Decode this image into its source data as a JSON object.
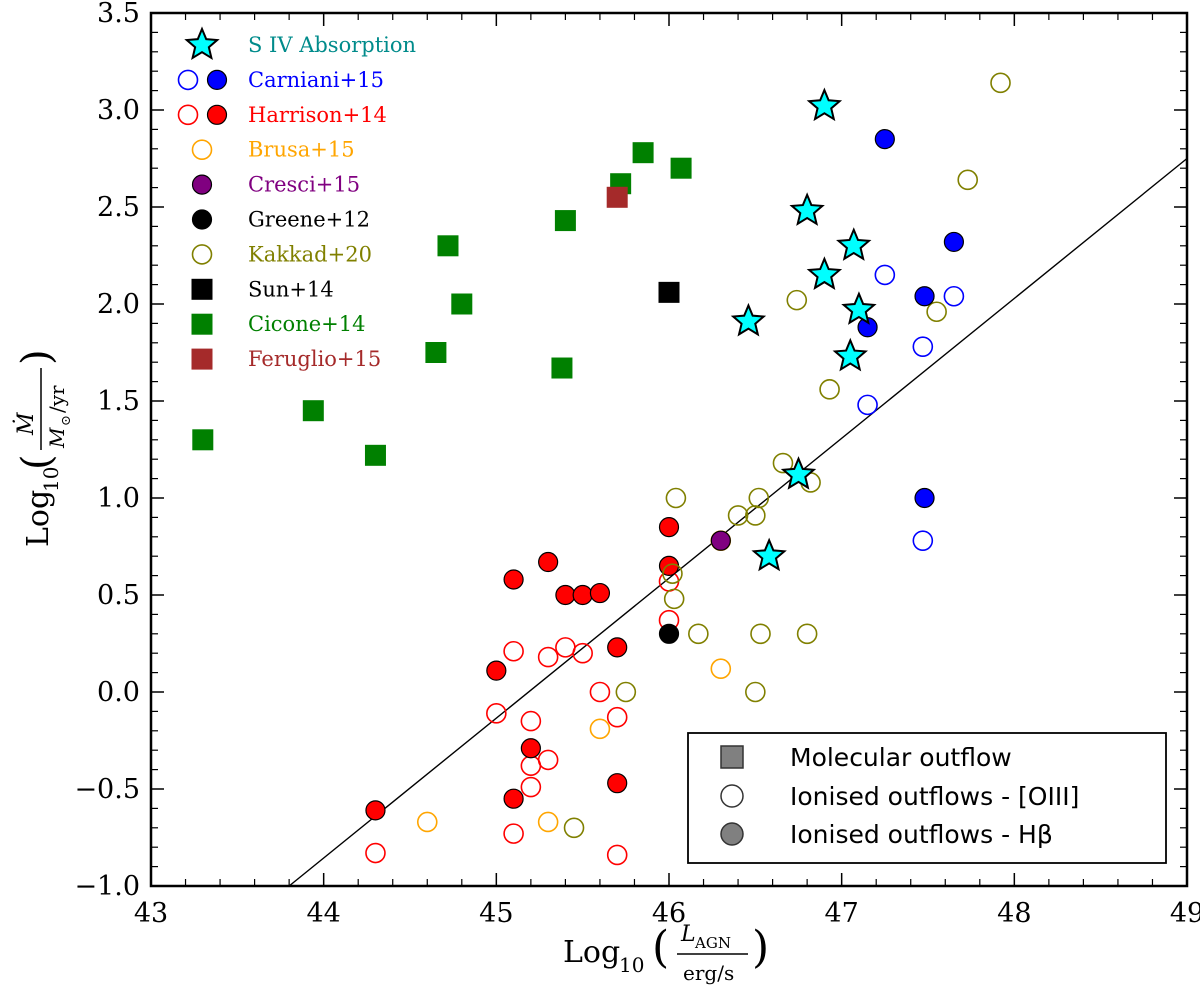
{
  "chart_data": {
    "type": "scatter",
    "xlim": [
      43,
      49
    ],
    "ylim": [
      -1.0,
      3.5
    ],
    "xticks": [
      "43",
      "44",
      "45",
      "46",
      "47",
      "48",
      "49"
    ],
    "yticks": [
      "−1.0",
      "−0.5",
      "0.0",
      "0.5",
      "1.0",
      "1.5",
      "2.0",
      "2.5",
      "3.0",
      "3.5"
    ],
    "xlabel": {
      "main": "Log",
      "sub": "10",
      "num": "L",
      "num_sub": "AGN",
      "den": "erg/s"
    },
    "ylabel": {
      "main": "Log",
      "sub": "10",
      "num": "Ṁ",
      "den": "M",
      "den_sub": "⊙",
      "den_tail": "/yr"
    },
    "fit_line": {
      "x": [
        43.8,
        49.0
      ],
      "y": [
        -1.0,
        2.75
      ]
    },
    "colors": {
      "siv": "#00ffff",
      "carniani": "#0000ff",
      "harrison": "#ff0000",
      "brusa": "#ffa500",
      "cresci": "#800080",
      "greene": "#000000",
      "kakkad": "#808000",
      "sun": "#000000",
      "cicone": "#008000",
      "feruglio": "#a52a2a"
    },
    "legend_datasets": [
      {
        "key": "siv",
        "label": "S IV Absorption",
        "text_color": "#008b8b"
      },
      {
        "key": "carniani",
        "label": "Carniani+15",
        "text_color": "#0000ff"
      },
      {
        "key": "harrison",
        "label": "Harrison+14",
        "text_color": "#ff0000"
      },
      {
        "key": "brusa",
        "label": "Brusa+15",
        "text_color": "#ffa500"
      },
      {
        "key": "cresci",
        "label": "Cresci+15",
        "text_color": "#800080"
      },
      {
        "key": "greene",
        "label": "Greene+12",
        "text_color": "#000000"
      },
      {
        "key": "kakkad",
        "label": "Kakkad+20",
        "text_color": "#808000"
      },
      {
        "key": "sun",
        "label": "Sun+14",
        "text_color": "#000000"
      },
      {
        "key": "cicone",
        "label": "Cicone+14",
        "text_color": "#008000"
      },
      {
        "key": "feruglio",
        "label": "Feruglio+15",
        "text_color": "#a52a2a"
      }
    ],
    "legend_types": [
      {
        "symbol": "square",
        "label": "Molecular outflow"
      },
      {
        "symbol": "circle-open",
        "label": "Ionised outflows - [OIII]"
      },
      {
        "symbol": "circle-filled",
        "label": "Ionised outflows - Hβ"
      }
    ],
    "series": [
      {
        "name": "Cicone+14",
        "key": "cicone",
        "marker": "square",
        "filled": true,
        "points": [
          [
            43.3,
            1.3
          ],
          [
            43.94,
            1.45
          ],
          [
            44.3,
            1.22
          ],
          [
            44.65,
            1.75
          ],
          [
            44.72,
            2.3
          ],
          [
            44.8,
            2.0
          ],
          [
            45.38,
            1.67
          ],
          [
            45.4,
            2.43
          ],
          [
            45.72,
            2.62
          ],
          [
            45.85,
            2.78
          ],
          [
            46.07,
            2.7
          ]
        ]
      },
      {
        "name": "Feruglio+15",
        "key": "feruglio",
        "marker": "square",
        "filled": true,
        "points": [
          [
            45.7,
            2.55
          ]
        ]
      },
      {
        "name": "Sun+14",
        "key": "sun",
        "marker": "square",
        "filled": true,
        "points": [
          [
            46.0,
            2.06
          ]
        ]
      },
      {
        "name": "Harrison+14 [OIII]",
        "key": "harrison",
        "marker": "circle",
        "filled": false,
        "points": [
          [
            44.3,
            -0.83
          ],
          [
            45.0,
            -0.11
          ],
          [
            45.1,
            0.21
          ],
          [
            45.1,
            -0.73
          ],
          [
            45.2,
            -0.15
          ],
          [
            45.2,
            -0.38
          ],
          [
            45.2,
            -0.49
          ],
          [
            45.3,
            0.18
          ],
          [
            45.3,
            -0.35
          ],
          [
            45.4,
            0.23
          ],
          [
            45.5,
            0.2
          ],
          [
            45.6,
            0.0
          ],
          [
            45.7,
            -0.13
          ],
          [
            45.7,
            -0.84
          ],
          [
            46.0,
            0.37
          ],
          [
            46.0,
            0.57
          ]
        ]
      },
      {
        "name": "Harrison+14 Hβ",
        "key": "harrison",
        "marker": "circle",
        "filled": true,
        "points": [
          [
            44.3,
            -0.61
          ],
          [
            45.0,
            0.11
          ],
          [
            45.1,
            0.58
          ],
          [
            45.1,
            -0.55
          ],
          [
            45.2,
            -0.29
          ],
          [
            45.3,
            0.67
          ],
          [
            45.4,
            0.5
          ],
          [
            45.5,
            0.5
          ],
          [
            45.6,
            0.51
          ],
          [
            45.7,
            0.23
          ],
          [
            45.7,
            -0.47
          ],
          [
            46.0,
            0.85
          ],
          [
            46.0,
            0.65
          ]
        ]
      },
      {
        "name": "Brusa+15",
        "key": "brusa",
        "marker": "circle",
        "filled": false,
        "points": [
          [
            44.6,
            -0.67
          ],
          [
            45.3,
            -0.67
          ],
          [
            45.6,
            -0.19
          ],
          [
            46.3,
            0.12
          ],
          [
            46.3,
            0.78
          ]
        ]
      },
      {
        "name": "Cresci+15",
        "key": "cresci",
        "marker": "circle",
        "filled": true,
        "points": [
          [
            46.3,
            0.78
          ]
        ]
      },
      {
        "name": "Greene+12",
        "key": "greene",
        "marker": "circle",
        "filled": true,
        "points": [
          [
            46.0,
            0.3
          ]
        ]
      },
      {
        "name": "Kakkad+20",
        "key": "kakkad",
        "marker": "circle",
        "filled": false,
        "points": [
          [
            45.45,
            -0.7
          ],
          [
            45.75,
            0.0
          ],
          [
            46.02,
            0.61
          ],
          [
            46.03,
            0.48
          ],
          [
            46.04,
            1.0
          ],
          [
            46.17,
            0.3
          ],
          [
            46.4,
            0.91
          ],
          [
            46.5,
            0.91
          ],
          [
            46.52,
            1.0
          ],
          [
            46.5,
            0.0
          ],
          [
            46.53,
            0.3
          ],
          [
            46.66,
            1.18
          ],
          [
            46.74,
            2.02
          ],
          [
            46.8,
            0.3
          ],
          [
            46.82,
            1.08
          ],
          [
            46.93,
            1.56
          ],
          [
            47.55,
            1.96
          ],
          [
            47.73,
            2.64
          ],
          [
            47.92,
            3.14
          ]
        ]
      },
      {
        "name": "Carniani+15 [OIII]",
        "key": "carniani",
        "marker": "circle",
        "filled": false,
        "points": [
          [
            47.15,
            1.48
          ],
          [
            47.25,
            2.15
          ],
          [
            47.47,
            1.78
          ],
          [
            47.47,
            0.78
          ],
          [
            47.65,
            2.04
          ]
        ]
      },
      {
        "name": "Carniani+15 Hβ",
        "key": "carniani",
        "marker": "circle",
        "filled": true,
        "points": [
          [
            47.15,
            1.88
          ],
          [
            47.25,
            2.85
          ],
          [
            47.48,
            2.04
          ],
          [
            47.48,
            1.0
          ],
          [
            47.65,
            2.32
          ]
        ]
      },
      {
        "name": "S IV Absorption",
        "key": "siv",
        "marker": "star",
        "filled": true,
        "points": [
          [
            46.9,
            3.02
          ],
          [
            46.8,
            2.48
          ],
          [
            46.9,
            2.15
          ],
          [
            47.07,
            2.3
          ],
          [
            47.1,
            1.97
          ],
          [
            47.05,
            1.73
          ],
          [
            46.46,
            1.91
          ],
          [
            46.75,
            1.12
          ],
          [
            46.58,
            0.7
          ]
        ]
      }
    ]
  }
}
